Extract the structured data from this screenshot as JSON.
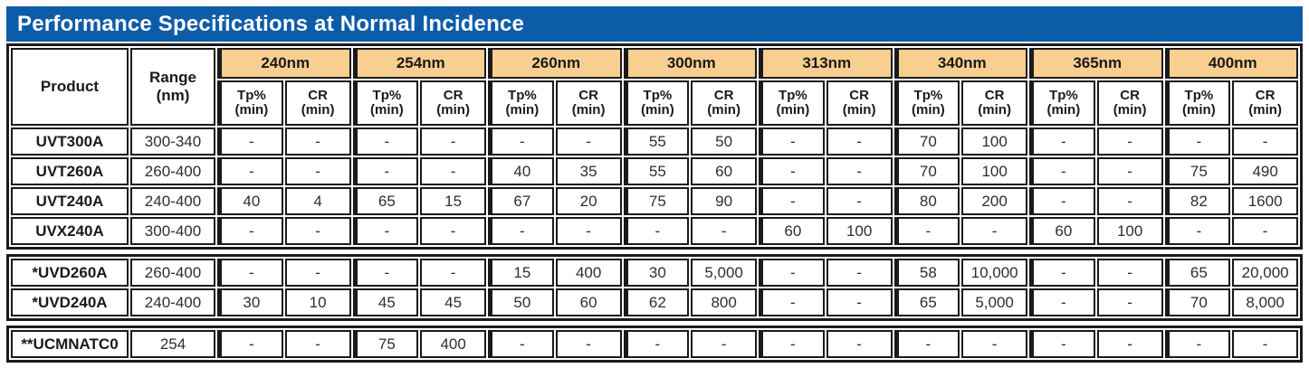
{
  "title": "Performance Specifications at Normal Incidence",
  "colors": {
    "title_bar": "#0d5ca8",
    "wavelength_header": "#f8cf90",
    "border": "#1a1a1a"
  },
  "table": {
    "product_label": "Product",
    "range_label": "Range\n(nm)",
    "tp_label": "Tp%\n(min)",
    "cr_label": "CR\n(min)",
    "wavelengths": [
      "240nm",
      "254nm",
      "260nm",
      "300nm",
      "313nm",
      "340nm",
      "365nm",
      "400nm"
    ],
    "sections": [
      {
        "rows": [
          {
            "product": "UVT300A",
            "range": "300-340",
            "values": [
              "-",
              "-",
              "-",
              "-",
              "-",
              "-",
              "55",
              "50",
              "-",
              "-",
              "70",
              "100",
              "-",
              "-",
              "-",
              "-"
            ]
          },
          {
            "product": "UVT260A",
            "range": "260-400",
            "values": [
              "-",
              "-",
              "-",
              "-",
              "40",
              "35",
              "55",
              "60",
              "-",
              "-",
              "70",
              "100",
              "-",
              "-",
              "75",
              "490"
            ]
          },
          {
            "product": "UVT240A",
            "range": "240-400",
            "values": [
              "40",
              "4",
              "65",
              "15",
              "67",
              "20",
              "75",
              "90",
              "-",
              "-",
              "80",
              "200",
              "-",
              "-",
              "82",
              "1600"
            ]
          },
          {
            "product": "UVX240A",
            "range": "300-400",
            "values": [
              "-",
              "-",
              "-",
              "-",
              "-",
              "-",
              "-",
              "-",
              "60",
              "100",
              "-",
              "-",
              "60",
              "100",
              "-",
              "-"
            ]
          }
        ]
      },
      {
        "rows": [
          {
            "product": "*UVD260A",
            "range": "260-400",
            "values": [
              "-",
              "-",
              "-",
              "-",
              "15",
              "400",
              "30",
              "5,000",
              "-",
              "-",
              "58",
              "10,000",
              "-",
              "-",
              "65",
              "20,000"
            ]
          },
          {
            "product": "*UVD240A",
            "range": "240-400",
            "values": [
              "30",
              "10",
              "45",
              "45",
              "50",
              "60",
              "62",
              "800",
              "-",
              "-",
              "65",
              "5,000",
              "-",
              "-",
              "70",
              "8,000"
            ]
          }
        ]
      },
      {
        "rows": [
          {
            "product": "**UCMNATC0",
            "range": "254",
            "values": [
              "-",
              "-",
              "75",
              "400",
              "-",
              "-",
              "-",
              "-",
              "-",
              "-",
              "-",
              "-",
              "-",
              "-",
              "-",
              "-"
            ]
          }
        ]
      }
    ]
  }
}
